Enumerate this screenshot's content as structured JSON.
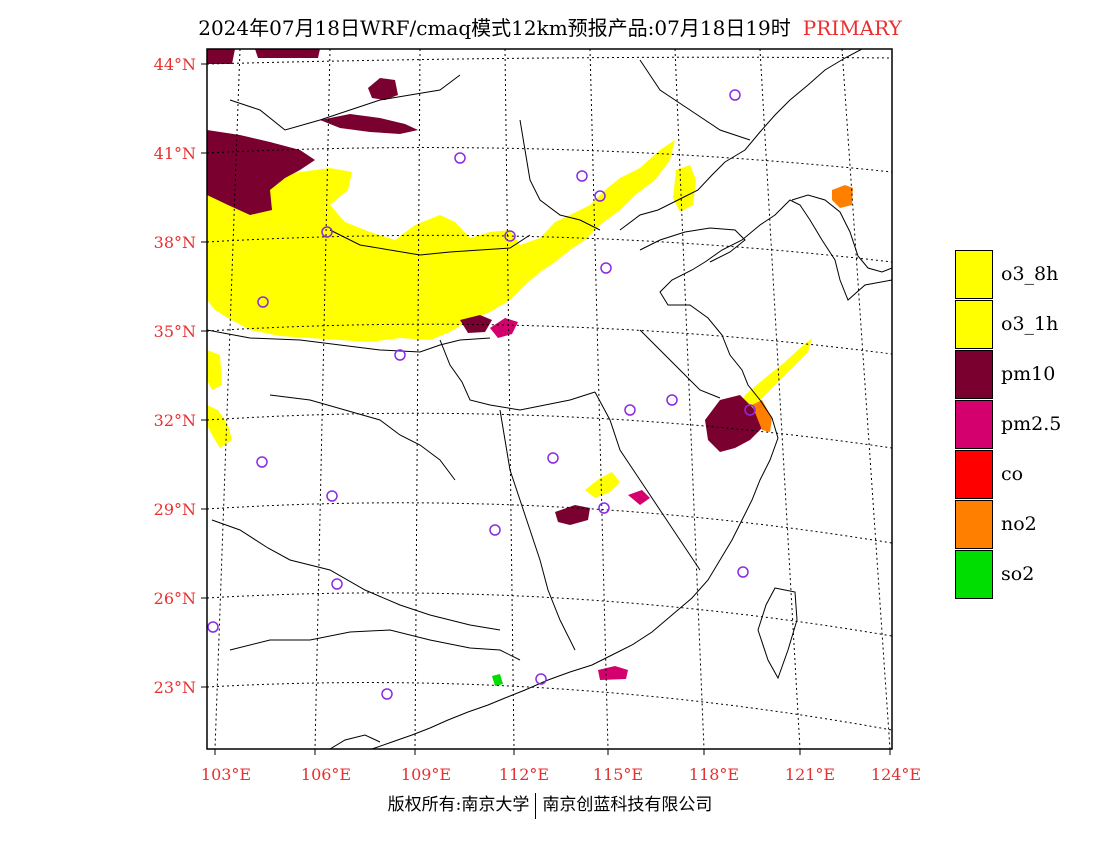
{
  "title": {
    "main": "2024年07月18日WRF/cmaq模式12km预报产品:07月18日19时",
    "tag": "PRIMARY"
  },
  "lat_labels": [
    "44°N",
    "41°N",
    "38°N",
    "35°N",
    "32°N",
    "29°N",
    "26°N",
    "23°N"
  ],
  "lon_labels": [
    "103°E",
    "106°E",
    "109°E",
    "112°E",
    "115°E",
    "118°E",
    "121°E",
    "124°E"
  ],
  "legend": [
    {
      "label": "o3_8h",
      "color": "#ffff00"
    },
    {
      "label": "o3_1h",
      "color": "#ffff00"
    },
    {
      "label": "pm10",
      "color": "#7a0030"
    },
    {
      "label": "pm2.5",
      "color": "#d4006e"
    },
    {
      "label": "co",
      "color": "#ff0000"
    },
    {
      "label": "no2",
      "color": "#ff7f00"
    },
    {
      "label": "so2",
      "color": "#00dd00"
    }
  ],
  "footer": {
    "left": "版权所有:南京大学",
    "right": "南京创蓝科技有限公司"
  }
}
